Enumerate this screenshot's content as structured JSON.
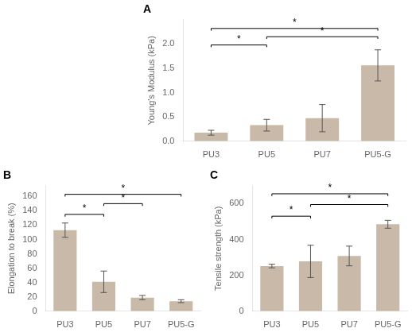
{
  "chart_data": [
    {
      "type": "bar",
      "title": "A",
      "categories": [
        "PU3",
        "PU5",
        "PU7",
        "PU5-G"
      ],
      "values": [
        0.175,
        0.33,
        0.475,
        1.56
      ],
      "errors": [
        0.05,
        0.12,
        0.28,
        0.32
      ],
      "color": "#C8B9A8",
      "ylabel": "Young's Modulus (kPa)",
      "ylim": [
        0,
        2.5
      ],
      "yticks": [
        {
          "value": 0.0,
          "label": "0.0"
        },
        0.5,
        {
          "value": 1.0,
          "label": "1.0"
        },
        1.5,
        {
          "value": 2.0,
          "label": "2.0"
        }
      ],
      "grid": false,
      "annotations": [
        {
          "x1": 0,
          "x2": 1,
          "y": 1.98,
          "label": "*"
        },
        {
          "x1": 1,
          "x2": 3,
          "y": 2.15,
          "label": "*"
        },
        {
          "x1": 0,
          "x2": 3,
          "y": 2.32,
          "label": "*"
        }
      ]
    },
    {
      "type": "bar",
      "title": "B",
      "categories": [
        "PU3",
        "PU5",
        "PU7",
        "PU5-G"
      ],
      "values": [
        113,
        41,
        19,
        14
      ],
      "errors": [
        10,
        15,
        3,
        2
      ],
      "color": "#C8B9A8",
      "ylabel": "Elongation to break (%)",
      "ylim": [
        0,
        175
      ],
      "yticks": [
        0,
        20,
        40,
        60,
        80,
        100,
        120,
        140,
        160
      ],
      "grid": false,
      "annotations": [
        {
          "x1": 0,
          "x2": 1,
          "y": 135,
          "label": "*"
        },
        {
          "x1": 1,
          "x2": 2,
          "y": 150,
          "label": "*"
        },
        {
          "x1": 0,
          "x2": 3,
          "y": 163,
          "label": "*"
        }
      ]
    },
    {
      "type": "bar",
      "title": "C",
      "categories": [
        "PU3",
        "PU5",
        "PU7",
        "PU5-G"
      ],
      "values": [
        252,
        278,
        308,
        485
      ],
      "errors": [
        10,
        90,
        55,
        22
      ],
      "color": "#C8B9A8",
      "ylabel": "Tensile strength (kPa)",
      "ylim": [
        0,
        700
      ],
      "yticks": [
        0,
        200,
        400,
        600
      ],
      "grid": false,
      "annotations": [
        {
          "x1": 0,
          "x2": 1,
          "y": 530,
          "label": "*"
        },
        {
          "x1": 1,
          "x2": 3,
          "y": 595,
          "label": "*"
        },
        {
          "x1": 0,
          "x2": 3,
          "y": 655,
          "label": "*"
        }
      ]
    }
  ]
}
